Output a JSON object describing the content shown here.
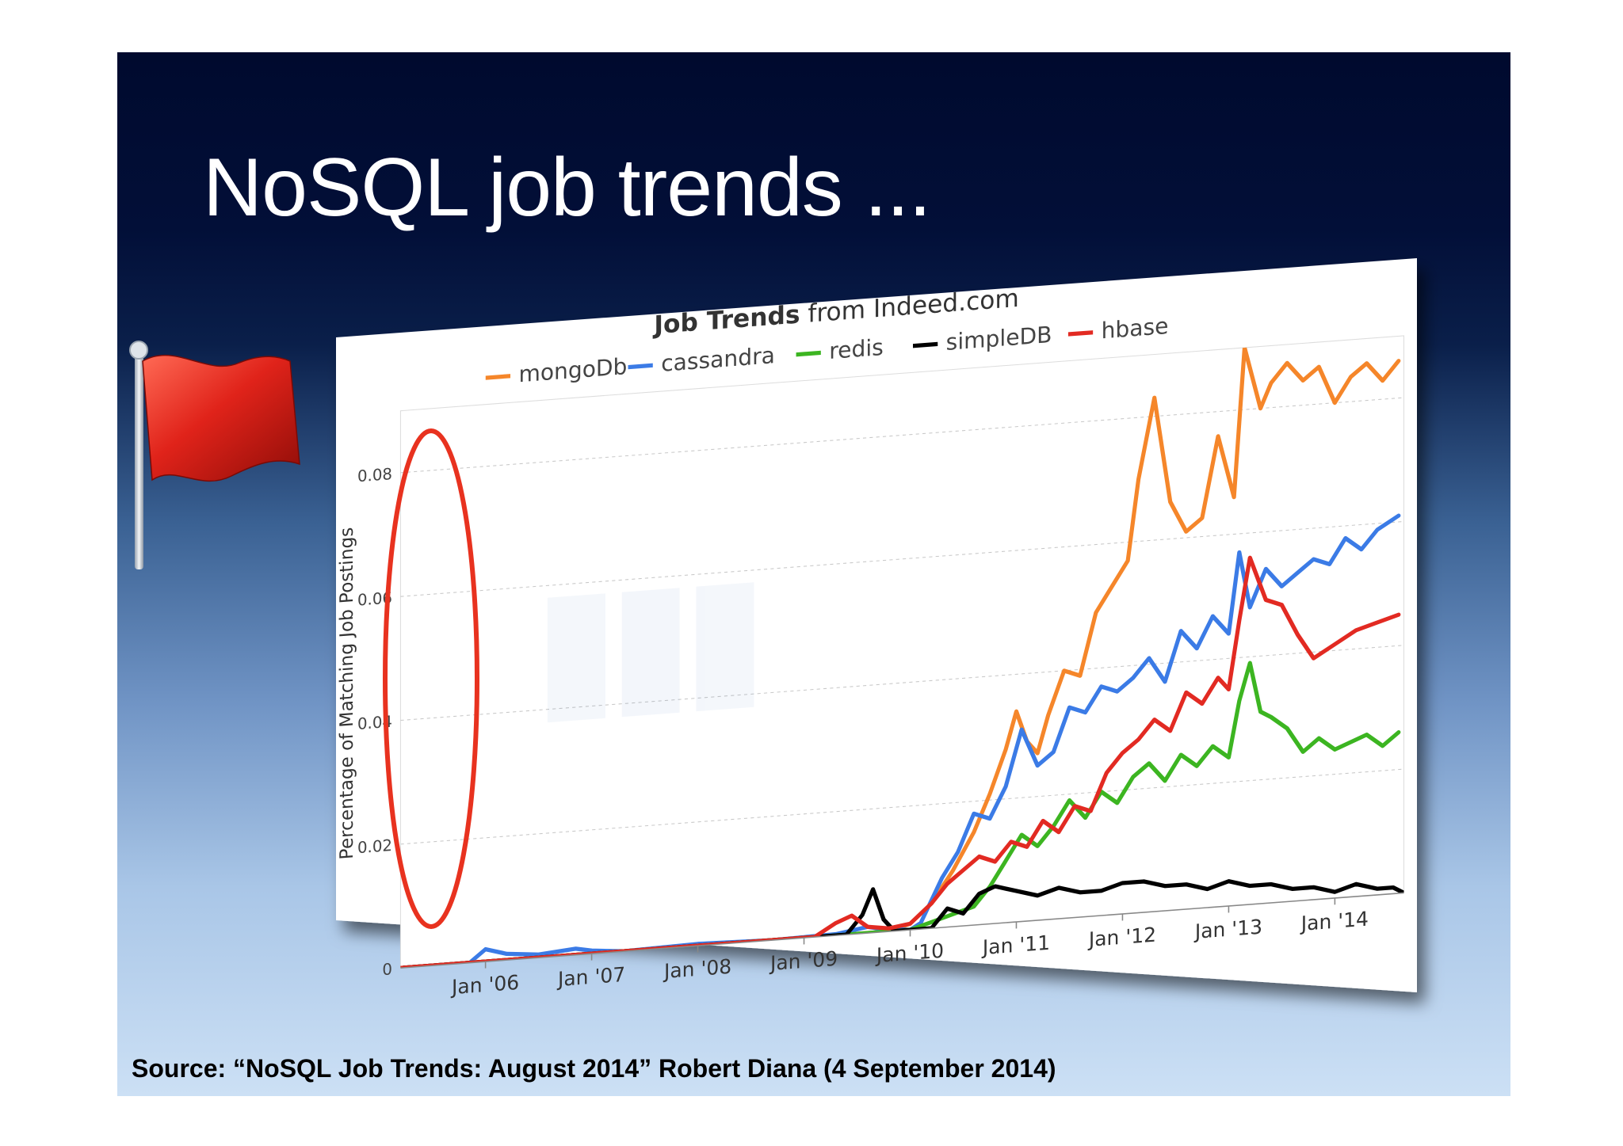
{
  "slide": {
    "title": "NoSQL job trends ...",
    "source": "Source: “NoSQL Job Trends: August 2014” Robert Diana (4 September 2014)"
  },
  "colors": {
    "mongoDb": "#f5862a",
    "cassandra": "#3b7be6",
    "redis": "#3cb521",
    "simpleDB": "#000000",
    "hbase": "#e22a22",
    "highlight": "#e8321f",
    "flag": "#e0231a"
  },
  "icons": {
    "flag": "red-flag-icon"
  },
  "chart_data": {
    "type": "line",
    "title_bold": "Job Trends",
    "title_rest": "from Indeed.com",
    "ylabel": "Percentage of Matching Job Postings",
    "ylim": [
      0,
      0.09
    ],
    "xlim": [
      2005.2,
      2014.65
    ],
    "yticks": [
      0,
      0.02,
      0.04,
      0.06,
      0.08
    ],
    "ytick_labels": [
      "0",
      "0.02",
      "0.04",
      "0.06",
      "0.08"
    ],
    "xticks": [
      2006,
      2007,
      2008,
      2009,
      2010,
      2011,
      2012,
      2013,
      2014
    ],
    "xtick_labels": [
      "Jan '06",
      "Jan '07",
      "Jan '08",
      "Jan '09",
      "Jan '10",
      "Jan '11",
      "Jan '12",
      "Jan '13",
      "Jan '14"
    ],
    "grid": true,
    "legend_placement": "top",
    "series": [
      {
        "name": "mongoDb",
        "x": [
          2005.2,
          2009.8,
          2010.0,
          2010.2,
          2010.4,
          2010.6,
          2010.75,
          2010.9,
          2011.0,
          2011.1,
          2011.2,
          2011.3,
          2011.45,
          2011.6,
          2011.75,
          2011.9,
          2012.05,
          2012.15,
          2012.3,
          2012.45,
          2012.6,
          2012.75,
          2012.9,
          2013.05,
          2013.15,
          2013.3,
          2013.4,
          2013.55,
          2013.7,
          2013.85,
          2014.0,
          2014.15,
          2014.3,
          2014.45,
          2014.6
        ],
        "y": [
          0,
          0,
          0.001,
          0.004,
          0.009,
          0.015,
          0.021,
          0.028,
          0.034,
          0.029,
          0.027,
          0.033,
          0.04,
          0.039,
          0.049,
          0.053,
          0.057,
          0.07,
          0.083,
          0.066,
          0.061,
          0.063,
          0.076,
          0.066,
          0.09,
          0.08,
          0.084,
          0.087,
          0.084,
          0.086,
          0.08,
          0.084,
          0.086,
          0.083,
          0.086
        ]
      },
      {
        "name": "cassandra",
        "x": [
          2005.2,
          2005.85,
          2006.0,
          2006.2,
          2006.5,
          2006.85,
          2007.0,
          2007.3,
          2008.0,
          2008.7,
          2009.3,
          2009.6,
          2009.75,
          2009.9,
          2010.0,
          2010.1,
          2010.3,
          2010.45,
          2010.6,
          2010.75,
          2010.9,
          2011.05,
          2011.2,
          2011.35,
          2011.5,
          2011.65,
          2011.8,
          2011.95,
          2012.1,
          2012.25,
          2012.4,
          2012.55,
          2012.7,
          2012.85,
          2013.0,
          2013.1,
          2013.2,
          2013.35,
          2013.5,
          2013.65,
          2013.8,
          2013.95,
          2014.1,
          2014.25,
          2014.4,
          2014.6
        ],
        "y": [
          0,
          0,
          0.002,
          0.001,
          0.0005,
          0.001,
          0.0005,
          0,
          0.0003,
          0,
          0.0002,
          0.001,
          0.0004,
          0.0002,
          0,
          0.001,
          0.008,
          0.012,
          0.018,
          0.017,
          0.022,
          0.031,
          0.025,
          0.027,
          0.034,
          0.033,
          0.037,
          0.036,
          0.038,
          0.041,
          0.037,
          0.045,
          0.042,
          0.047,
          0.044,
          0.057,
          0.048,
          0.054,
          0.051,
          0.053,
          0.055,
          0.054,
          0.058,
          0.056,
          0.059,
          0.061
        ]
      },
      {
        "name": "redis",
        "x": [
          2005.2,
          2010.0,
          2010.2,
          2010.4,
          2010.6,
          2010.75,
          2010.9,
          2011.05,
          2011.2,
          2011.35,
          2011.5,
          2011.65,
          2011.8,
          2011.95,
          2012.1,
          2012.25,
          2012.4,
          2012.55,
          2012.7,
          2012.85,
          2013.0,
          2013.1,
          2013.2,
          2013.3,
          2013.4,
          2013.55,
          2013.7,
          2013.85,
          2014.0,
          2014.15,
          2014.3,
          2014.45,
          2014.6
        ],
        "y": [
          0,
          0,
          0.001,
          0.002,
          0.003,
          0.006,
          0.01,
          0.014,
          0.012,
          0.015,
          0.019,
          0.016,
          0.02,
          0.018,
          0.022,
          0.024,
          0.021,
          0.025,
          0.023,
          0.026,
          0.024,
          0.033,
          0.039,
          0.031,
          0.03,
          0.028,
          0.024,
          0.026,
          0.024,
          0.025,
          0.026,
          0.024,
          0.026
        ]
      },
      {
        "name": "simpleDB",
        "x": [
          2005.2,
          2009.4,
          2009.55,
          2009.65,
          2009.75,
          2009.85,
          2010.0,
          2010.2,
          2010.35,
          2010.5,
          2010.65,
          2010.8,
          2011.0,
          2011.2,
          2011.4,
          2011.6,
          2011.8,
          2012.0,
          2012.2,
          2012.4,
          2012.6,
          2012.8,
          2013.0,
          2013.2,
          2013.4,
          2013.6,
          2013.8,
          2014.0,
          2014.2,
          2014.4,
          2014.55,
          2014.65
        ],
        "y": [
          0,
          0,
          0.003,
          0.007,
          0.002,
          0,
          0,
          0,
          0.003,
          0.002,
          0.005,
          0.006,
          0.005,
          0.004,
          0.005,
          0.004,
          0.004,
          0.005,
          0.005,
          0.004,
          0.004,
          0.003,
          0.004,
          0.003,
          0.003,
          0.002,
          0.002,
          0.001,
          0.002,
          0.001,
          0.001,
          0
        ]
      },
      {
        "name": "hbase",
        "x": [
          2005.2,
          2009.1,
          2009.3,
          2009.45,
          2009.6,
          2009.8,
          2010.0,
          2010.2,
          2010.35,
          2010.5,
          2010.65,
          2010.8,
          2010.95,
          2011.1,
          2011.25,
          2011.4,
          2011.55,
          2011.7,
          2011.85,
          2012.0,
          2012.15,
          2012.3,
          2012.45,
          2012.6,
          2012.75,
          2012.9,
          2013.0,
          2013.1,
          2013.2,
          2013.35,
          2013.5,
          2013.65,
          2013.8,
          2014.0,
          2014.2,
          2014.4,
          2014.6
        ],
        "y": [
          0,
          0,
          0.002,
          0.003,
          0.001,
          0.0005,
          0.001,
          0.004,
          0.007,
          0.009,
          0.011,
          0.01,
          0.013,
          0.012,
          0.016,
          0.014,
          0.018,
          0.017,
          0.023,
          0.026,
          0.028,
          0.031,
          0.029,
          0.035,
          0.033,
          0.037,
          0.035,
          0.046,
          0.056,
          0.049,
          0.048,
          0.043,
          0.039,
          0.041,
          0.043,
          0.044,
          0.045
        ]
      }
    ]
  }
}
